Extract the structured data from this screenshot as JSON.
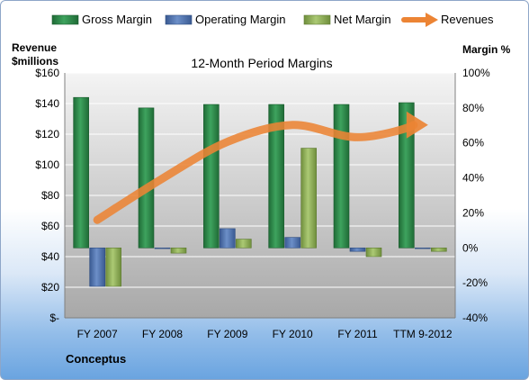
{
  "chart_data": {
    "type": "bar",
    "title": "12-Month Period Margins",
    "company": "Conceptus",
    "y_left_label": [
      "Revenue",
      "$millions"
    ],
    "y_right_label": "Margin %",
    "categories": [
      "FY 2007",
      "FY 2008",
      "FY 2009",
      "FY 2010",
      "FY 2011",
      "TTM 9-2012"
    ],
    "left_ticks": [
      "$-",
      "$20",
      "$40",
      "$60",
      "$80",
      "$100",
      "$120",
      "$140",
      "$160"
    ],
    "right_ticks": [
      "-40%",
      "-20%",
      "0%",
      "20%",
      "40%",
      "60%",
      "80%",
      "100%"
    ],
    "ylim_left": [
      0,
      160
    ],
    "ylim_right": [
      -40,
      100
    ],
    "grid": true,
    "legend_position": "top",
    "series": [
      {
        "name": "Gross Margin",
        "kind": "bar",
        "axis": "right",
        "color": "#2e8b4a",
        "values": [
          86,
          80,
          82,
          82,
          82,
          83
        ]
      },
      {
        "name": "Operating Margin",
        "kind": "bar",
        "axis": "right",
        "color": "#4f73ae",
        "values": [
          -22,
          0,
          11,
          6,
          -2,
          0
        ]
      },
      {
        "name": "Net Margin",
        "kind": "bar",
        "axis": "right",
        "color": "#92b35a",
        "values": [
          -22,
          -3,
          5,
          57,
          -5,
          -2
        ]
      },
      {
        "name": "Revenues",
        "kind": "line",
        "axis": "left",
        "color": "#ec8434",
        "values": [
          64,
          91,
          115,
          126,
          118,
          126
        ]
      }
    ]
  }
}
